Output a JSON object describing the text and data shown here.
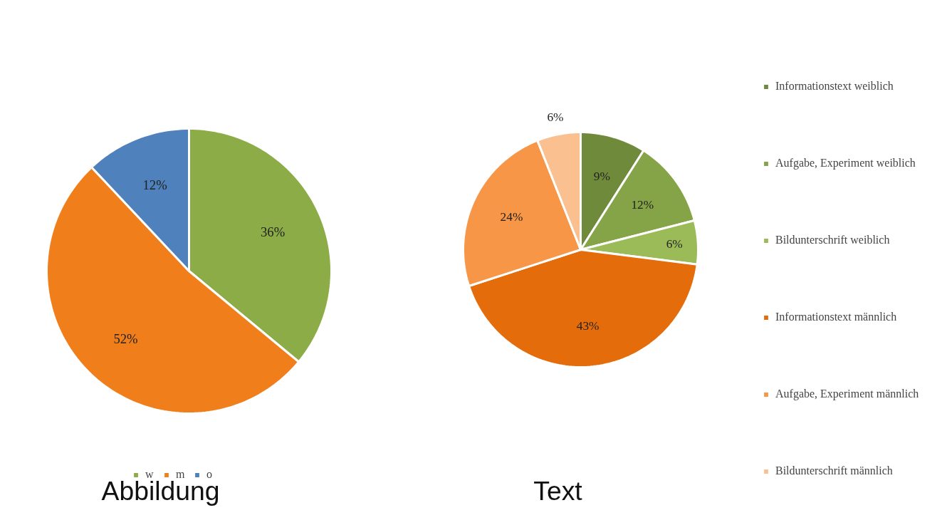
{
  "chart_data": [
    {
      "type": "pie",
      "title": "Abbildung",
      "categories": [
        "w",
        "m",
        "o"
      ],
      "values": [
        36,
        52,
        12
      ],
      "colors": [
        "#8bac46",
        "#f07f1b",
        "#4f81bd"
      ],
      "value_labels": [
        "36%",
        "52%",
        "12%"
      ],
      "legend": "bottom"
    },
    {
      "type": "pie",
      "title": "Text",
      "categories": [
        "Informationstext weiblich",
        "Aufgabe, Experiment weiblich",
        "Bildunterschrift weiblich",
        "Informationstext männlich",
        "Aufgabe, Experiment männlich",
        "Bildunterschrift männlich"
      ],
      "values": [
        9,
        12,
        6,
        43,
        24,
        6
      ],
      "colors": [
        "#6f8a3a",
        "#85a447",
        "#9bbb59",
        "#e46c0a",
        "#f79646",
        "#fac090"
      ],
      "value_labels": [
        "9%",
        "12%",
        "6%",
        "43%",
        "24%",
        "6%"
      ],
      "legend": "right"
    }
  ]
}
